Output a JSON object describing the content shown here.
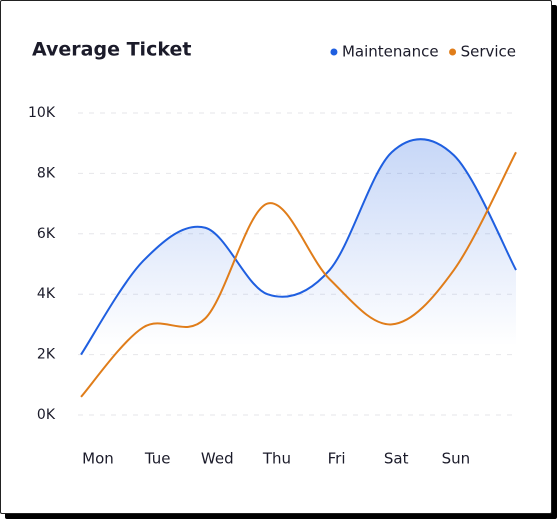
{
  "chart_data": {
    "type": "line",
    "title": "Average Ticket",
    "categories": [
      "Mon",
      "Tue",
      "Wed",
      "Thu",
      "Fri",
      "Sat",
      "Sun",
      null
    ],
    "series": [
      {
        "name": "Maintenance",
        "color": "#1f5fe0",
        "values": [
          2.0,
          5.1,
          6.2,
          4.0,
          4.8,
          8.7,
          8.6,
          4.8
        ],
        "area": true
      },
      {
        "name": "Service",
        "color": "#e07d1a",
        "values": [
          0.6,
          2.9,
          3.2,
          7.0,
          4.5,
          3.0,
          4.8,
          8.7
        ]
      }
    ],
    "ylim": [
      0,
      10
    ],
    "yticks": [
      {
        "value": 0,
        "label": "0K"
      },
      {
        "value": 2,
        "label": "2K"
      },
      {
        "value": 4,
        "label": "4K"
      },
      {
        "value": 6,
        "label": "6K"
      },
      {
        "value": 8,
        "label": "8K"
      },
      {
        "value": 10,
        "label": "10K"
      }
    ],
    "grid": true,
    "legend": "top-right"
  }
}
